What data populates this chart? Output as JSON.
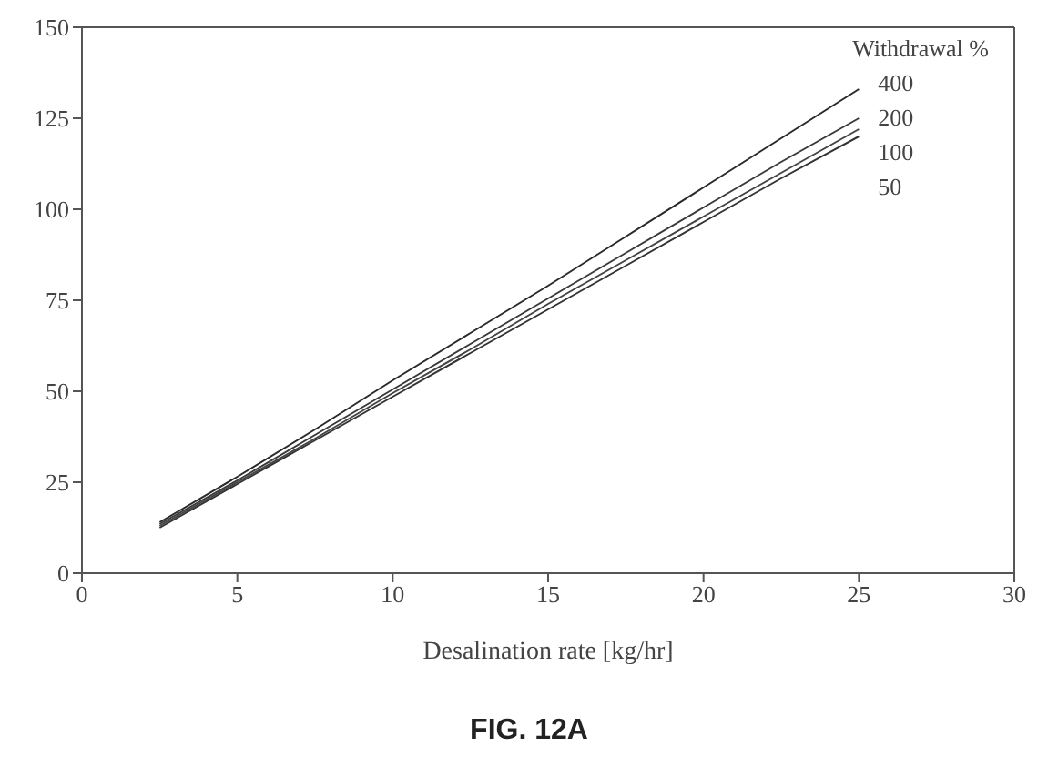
{
  "chart_data": {
    "type": "line",
    "xlabel": "Desalination rate [kg/hr]",
    "legend_title": "Withdrawal %",
    "annotations": [
      "FIG. 12A"
    ],
    "x": [
      2.5,
      5,
      7.5,
      10,
      12.5,
      15,
      17.5,
      20,
      22.5,
      25
    ],
    "series": [
      {
        "name": "400",
        "color": "#2a2a2a",
        "values": [
          14,
          26.5,
          39.5,
          53,
          66,
          79,
          92.5,
          106,
          119.5,
          133
        ]
      },
      {
        "name": "200",
        "color": "#3a3a3a",
        "values": [
          13.5,
          25.5,
          38,
          50.5,
          63,
          75.5,
          88,
          100.5,
          113,
          125
        ]
      },
      {
        "name": "100",
        "color": "#444444",
        "values": [
          13,
          25,
          37,
          49.5,
          61.5,
          74,
          86,
          98,
          110,
          122
        ]
      },
      {
        "name": "50",
        "color": "#333333",
        "values": [
          12.5,
          24.5,
          36.5,
          48.5,
          60.5,
          72.5,
          84.5,
          96.5,
          108.5,
          120
        ]
      }
    ],
    "xlim": [
      0,
      30
    ],
    "xticks": [
      0,
      5,
      10,
      15,
      20,
      25,
      30
    ],
    "ylim": [
      0,
      150
    ],
    "yticks": [
      0,
      25,
      50,
      75,
      100,
      125,
      150
    ],
    "legend": "top right"
  }
}
